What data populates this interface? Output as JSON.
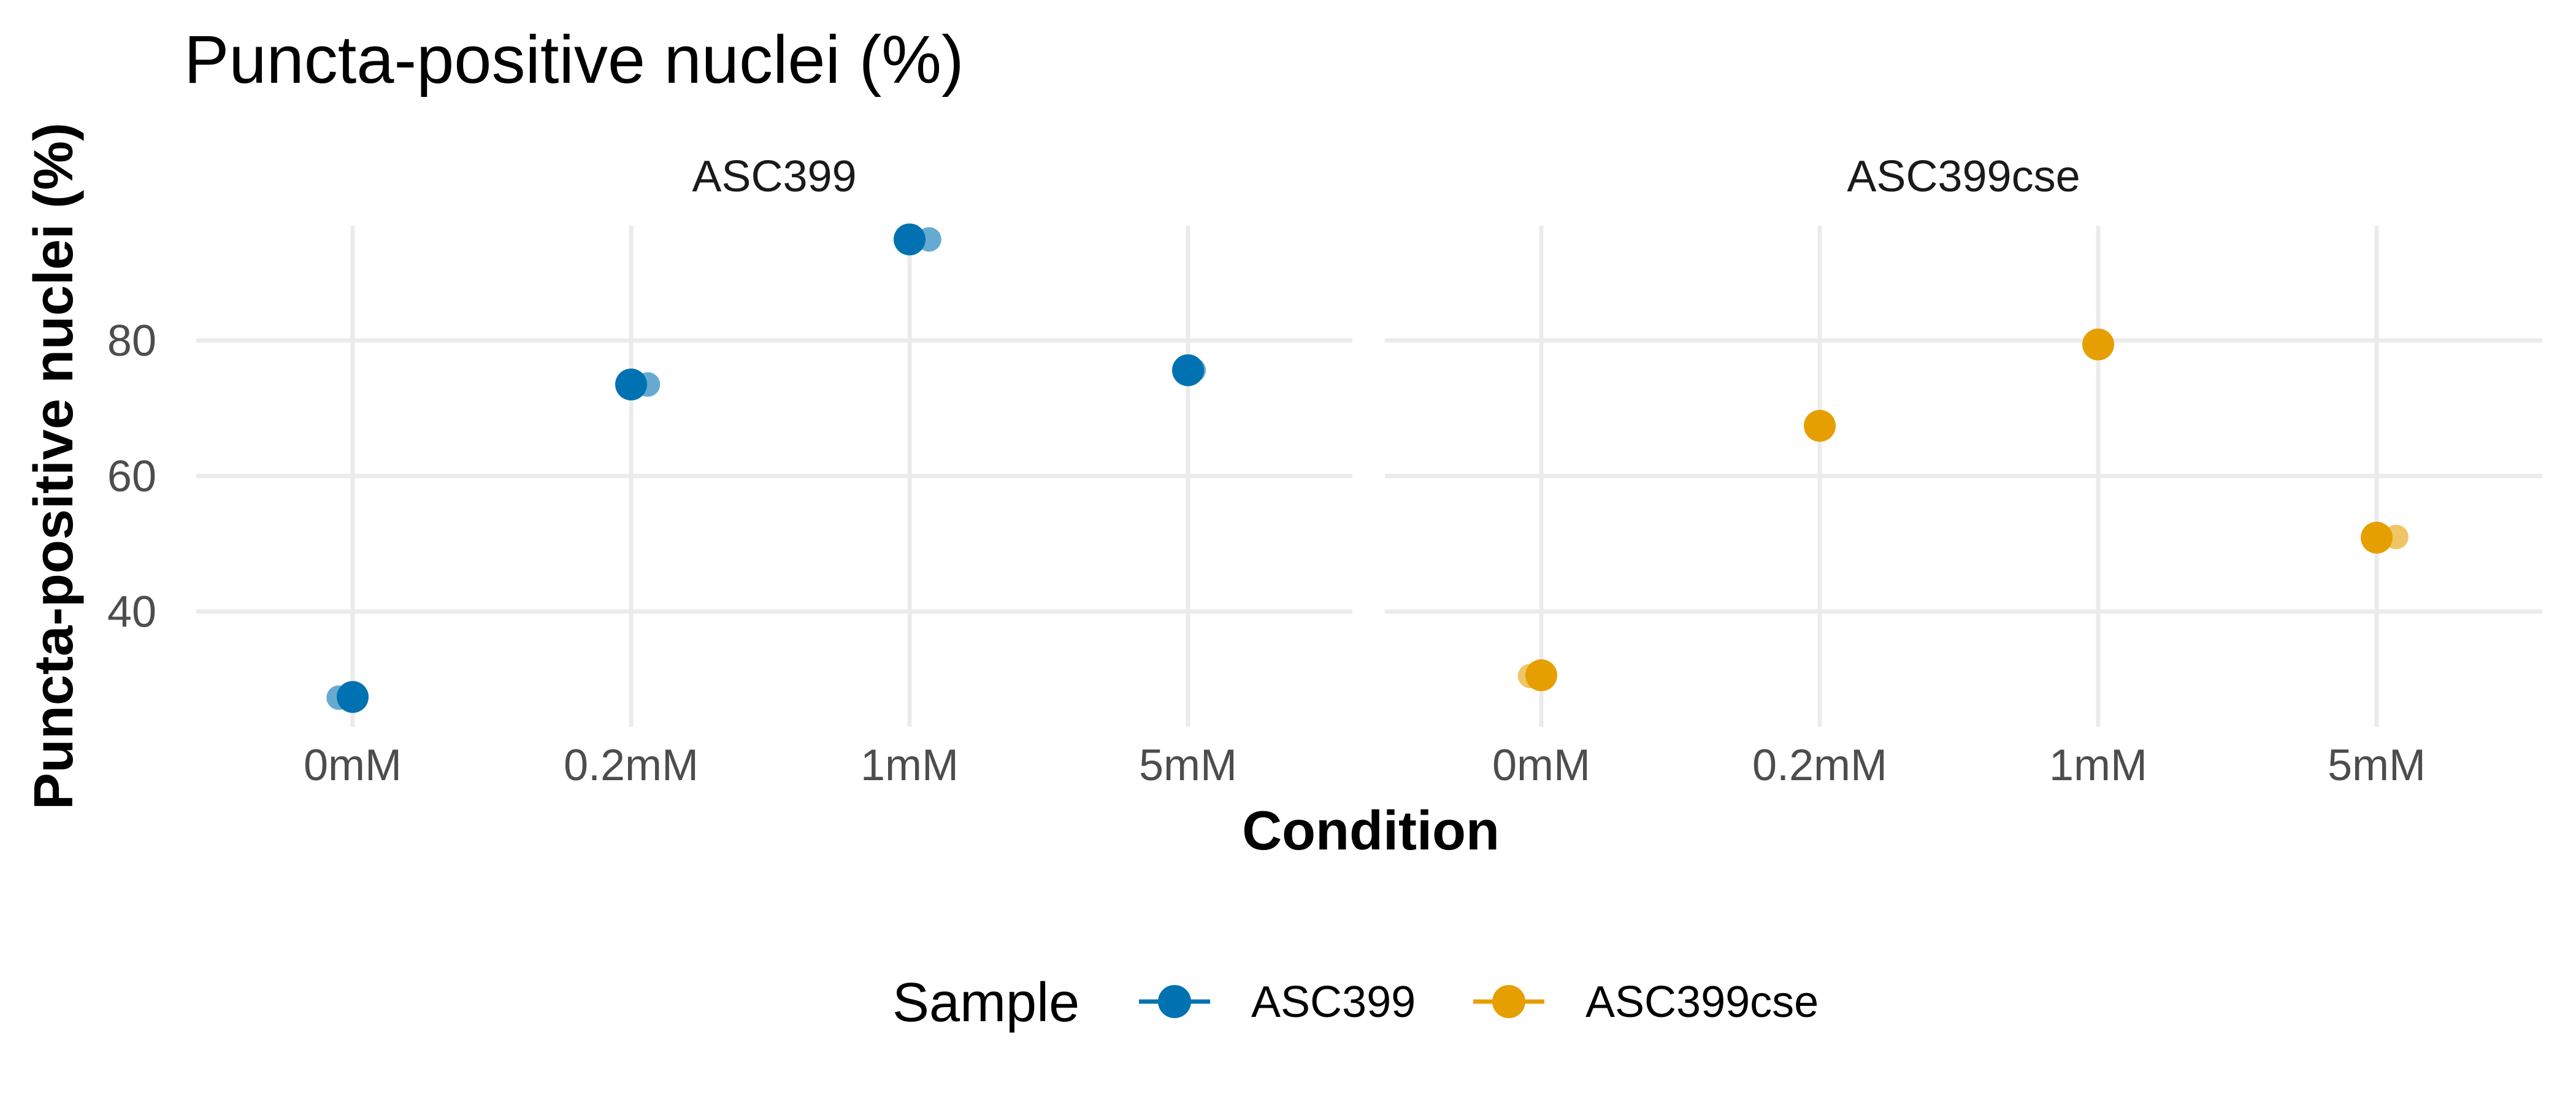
{
  "chart_data": {
    "type": "scatter",
    "title": "Puncta-positive nuclei (%)",
    "xlabel": "Condition",
    "ylabel": "Puncta-positive nuclei (%)",
    "categories": [
      "0mM",
      "0.2mM",
      "1mM",
      "5mM"
    ],
    "yticks": [
      40,
      60,
      80
    ],
    "ylim": [
      23,
      99
    ],
    "grid": true,
    "legend": {
      "title": "Sample",
      "position": "bottom",
      "entries": [
        {
          "name": "ASC399",
          "color": "#0072B2"
        },
        {
          "name": "ASC399cse",
          "color": "#E69F00"
        }
      ]
    },
    "panels": [
      {
        "label": "ASC399",
        "color": "#0072B2",
        "points": [
          {
            "x": "0mM",
            "y": 27.3,
            "jitter": -0.05,
            "faded": true
          },
          {
            "x": "0mM",
            "y": 27.4,
            "jitter": 0.0,
            "faded": false
          },
          {
            "x": "0.2mM",
            "y": 73.5,
            "jitter": 0.06,
            "faded": true
          },
          {
            "x": "0.2mM",
            "y": 73.5,
            "jitter": 0.0,
            "faded": false
          },
          {
            "x": "1mM",
            "y": 94.9,
            "jitter": 0.07,
            "faded": true
          },
          {
            "x": "1mM",
            "y": 94.9,
            "jitter": 0.0,
            "faded": false
          },
          {
            "x": "5mM",
            "y": 75.6,
            "jitter": 0.02,
            "faded": true
          },
          {
            "x": "5mM",
            "y": 75.6,
            "jitter": 0.0,
            "faded": false
          }
        ]
      },
      {
        "label": "ASC399cse",
        "color": "#E69F00",
        "points": [
          {
            "x": "0mM",
            "y": 30.5,
            "jitter": -0.04,
            "faded": true
          },
          {
            "x": "0mM",
            "y": 30.6,
            "jitter": 0.0,
            "faded": false
          },
          {
            "x": "0.2mM",
            "y": 67.4,
            "jitter": 0.0,
            "faded": false
          },
          {
            "x": "1mM",
            "y": 79.4,
            "jitter": 0.0,
            "faded": false
          },
          {
            "x": "5mM",
            "y": 51.0,
            "jitter": 0.07,
            "faded": true
          },
          {
            "x": "5mM",
            "y": 50.9,
            "jitter": 0.0,
            "faded": false
          }
        ]
      }
    ]
  }
}
